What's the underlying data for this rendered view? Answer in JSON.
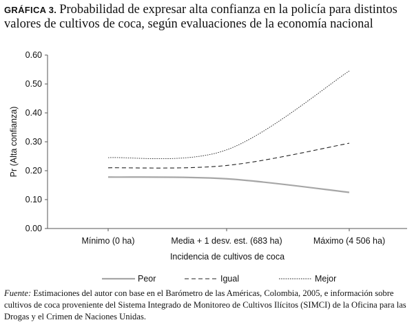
{
  "figure": {
    "label": "GRÁFICA 3.",
    "title": "Probabilidad de expresar alta confianza en la policía para distintos valores de cultivos de coca, según evaluaciones de la economía nacional"
  },
  "chart_data": {
    "type": "line",
    "categories": [
      "Mínimo (0 ha)",
      "Media + 1 desv. est. (683 ha)",
      "Máximo (4 506 ha)"
    ],
    "xlabel": "Incidencia de cultivos de coca",
    "ylabel": "Pr (Alta confianza)",
    "ylim": [
      0,
      0.6
    ],
    "yticks": [
      "0.00",
      "0.10",
      "0.20",
      "0.30",
      "0.40",
      "0.50",
      "0.60"
    ],
    "grid": false,
    "legend_position": "bottom",
    "series": [
      {
        "name": "Peor",
        "style": "solid",
        "color": "#a6a6a6",
        "values": [
          0.178,
          0.172,
          0.125
        ]
      },
      {
        "name": "Igual",
        "style": "dashed",
        "color": "#222222",
        "values": [
          0.21,
          0.218,
          0.295
        ]
      },
      {
        "name": "Mejor",
        "style": "dotted",
        "color": "#222222",
        "values": [
          0.245,
          0.272,
          0.545
        ]
      }
    ]
  },
  "note": {
    "label": "Fuente:",
    "text": "Estimaciones del autor con base en el Barómetro de las Américas, Colombia, 2005, e información sobre cultivos de coca proveniente del Sistema Integrado de Monitoreo de Cultivos Ilícitos (SIMCI) de la Oficina para las Drogas y el Crimen de Naciones Unidas."
  }
}
